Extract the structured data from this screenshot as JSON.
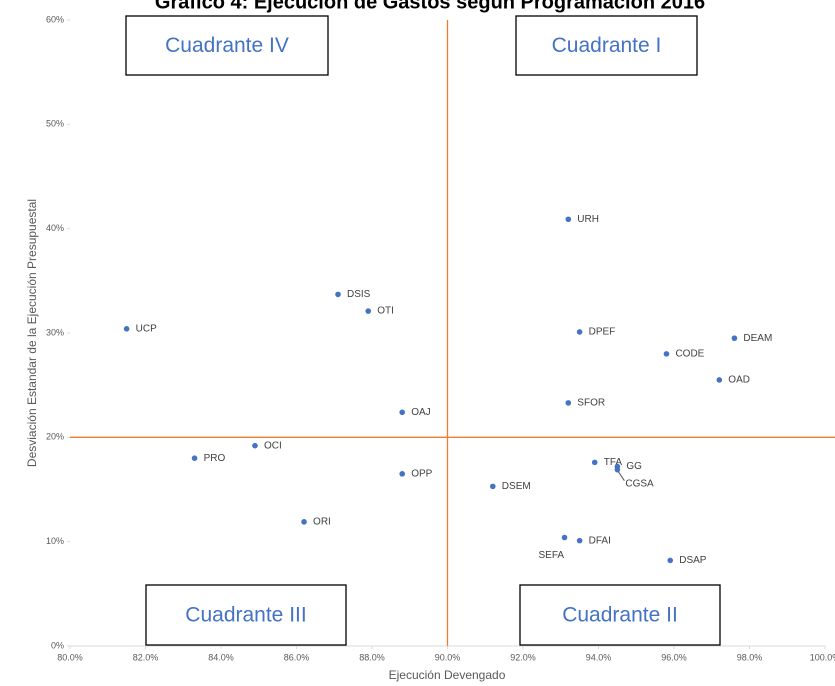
{
  "chart_data": {
    "type": "scatter",
    "title": "Gráfico 4: Ejecución de Gastos según Programación 2016",
    "x_label": "Ejecución Devengado",
    "y_label": "Desviación Estandar de la Ejecución Presupuestal",
    "color": "#4472c4",
    "reference_color": "#ed7d31",
    "x_reference": 90,
    "y_reference": 20,
    "labels": [
      "UCP",
      "PRO",
      "OCI",
      "ORI",
      "DSIS",
      "OTI",
      "OAJ",
      "OPP",
      "DSEM",
      "URH",
      "DPEF",
      "SFOR",
      "TFA",
      "GG",
      "CGSA",
      "SEFA",
      "DFAI",
      "DSAP",
      "CODE",
      "OAD",
      "DEAM"
    ],
    "x": [
      81.5,
      83.3,
      84.9,
      86.2,
      87.1,
      87.9,
      88.8,
      88.8,
      91.2,
      93.2,
      93.5,
      93.2,
      93.9,
      94.5,
      94.5,
      93.1,
      93.5,
      95.9,
      95.8,
      97.2,
      97.6
    ],
    "values": [
      30.4,
      18.0,
      19.2,
      11.9,
      33.7,
      32.1,
      22.4,
      16.5,
      15.3,
      40.9,
      30.1,
      23.3,
      17.6,
      17.2,
      16.9,
      10.4,
      10.1,
      8.2,
      28.0,
      25.5,
      29.5
    ],
    "annotations": [
      "Cuadrante IV",
      "Cuadrante I",
      "Cuadrante III",
      "Cuadrante II"
    ],
    "xlim": [
      80,
      100
    ],
    "ylim": [
      0,
      60
    ],
    "xticks": [
      {
        "value": 80,
        "label": "80.0%"
      },
      {
        "value": 82,
        "label": "82.0%"
      },
      {
        "value": 84,
        "label": "84.0%"
      },
      {
        "value": 86,
        "label": "86.0%"
      },
      {
        "value": 88,
        "label": "88.0%"
      },
      {
        "value": 90,
        "label": "90.0%"
      },
      {
        "value": 92,
        "label": "92.0%"
      },
      {
        "value": 94,
        "label": "94.0%"
      },
      {
        "value": 96,
        "label": "96.0%"
      },
      {
        "value": 98,
        "label": "98.0%"
      },
      {
        "value": 100,
        "label": "100.0%"
      }
    ],
    "yticks": [
      {
        "value": 0,
        "label": "0%"
      },
      {
        "value": 10,
        "label": "10%"
      },
      {
        "value": 20,
        "label": "20%"
      },
      {
        "value": 30,
        "label": "30%"
      },
      {
        "value": 40,
        "label": "40%"
      },
      {
        "value": 50,
        "label": "50%"
      },
      {
        "value": 60,
        "label": "60%"
      }
    ]
  }
}
